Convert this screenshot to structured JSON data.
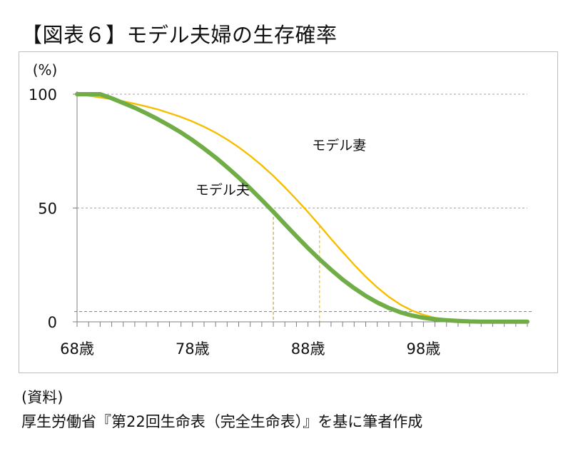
{
  "title": "【図表６】モデル夫婦の生存確率",
  "source": {
    "label": "(資料)",
    "text": "厚生労働省『第22回生命表（完全生命表）』を基に筆者作成"
  },
  "chart_data": {
    "type": "line",
    "title": "【図表６】モデル夫婦の生存確率",
    "ylabel": "(%)",
    "xlabel": "",
    "ylim": [
      0,
      100
    ],
    "xlim": [
      68,
      107
    ],
    "y_ticks": [
      0,
      50,
      100
    ],
    "x_tick_labels": [
      {
        "value": 68,
        "label": "68歳"
      },
      {
        "value": 78,
        "label": "78歳"
      },
      {
        "value": 88,
        "label": "88歳"
      },
      {
        "value": 98,
        "label": "98歳"
      }
    ],
    "grid": "horizontal dashed at 0, 50, 100",
    "reference_lines": [
      {
        "kind": "horizontal",
        "y": 4.5,
        "style": "dashed"
      },
      {
        "kind": "vertical",
        "x": 85,
        "color": "#b8a24a",
        "style": "dashed"
      },
      {
        "kind": "vertical",
        "x": 89,
        "color": "#f5bf00",
        "style": "dashed"
      }
    ],
    "series": [
      {
        "name": "モデル夫",
        "color": "#70ad47",
        "x": [
          68,
          69,
          70,
          71,
          72,
          73,
          74,
          75,
          76,
          77,
          78,
          79,
          80,
          81,
          82,
          83,
          84,
          85,
          86,
          87,
          88,
          89,
          90,
          91,
          92,
          93,
          94,
          95,
          96,
          97,
          98,
          99,
          100,
          101,
          102,
          103,
          104,
          105,
          106,
          107
        ],
        "y": [
          100,
          100,
          100,
          98.2,
          96.1,
          94.0,
          91.6,
          89.0,
          86.2,
          83.2,
          79.8,
          76.1,
          72.2,
          67.9,
          63.4,
          58.6,
          53.5,
          48.3,
          42.9,
          37.6,
          32.4,
          27.5,
          22.9,
          18.6,
          14.8,
          11.4,
          8.5,
          6.1,
          4.2,
          2.8,
          1.8,
          1.1,
          0.7,
          0.4,
          0.2,
          0.1,
          0.1,
          0.1,
          0.1,
          0.1
        ]
      },
      {
        "name": "モデル妻",
        "color": "#f5bf00",
        "x": [
          68,
          69,
          70,
          71,
          72,
          73,
          74,
          75,
          76,
          77,
          78,
          79,
          80,
          81,
          82,
          83,
          84,
          85,
          86,
          87,
          88,
          89,
          90,
          91,
          92,
          93,
          94,
          95,
          96,
          97,
          98,
          99,
          100,
          101,
          102,
          103,
          104,
          105,
          106,
          107
        ],
        "y": [
          100,
          99.3,
          98.6,
          97.8,
          96.9,
          95.8,
          94.6,
          93.3,
          91.7,
          90.0,
          88.0,
          85.7,
          83.1,
          80.1,
          76.7,
          72.9,
          68.7,
          64.1,
          59.1,
          53.8,
          48.2,
          42.4,
          36.5,
          30.7,
          25.1,
          19.8,
          15.1,
          11.0,
          7.6,
          5.0,
          3.1,
          1.8,
          1.0,
          0.5,
          0.3,
          0.2,
          0.1,
          0.1,
          0.1,
          0.1
        ]
      }
    ],
    "annotations": [
      {
        "text": "モデル妻",
        "x": 90.7,
        "y": 75.5
      },
      {
        "text": "モデル夫",
        "x": 80.6,
        "y": 56
      }
    ]
  }
}
